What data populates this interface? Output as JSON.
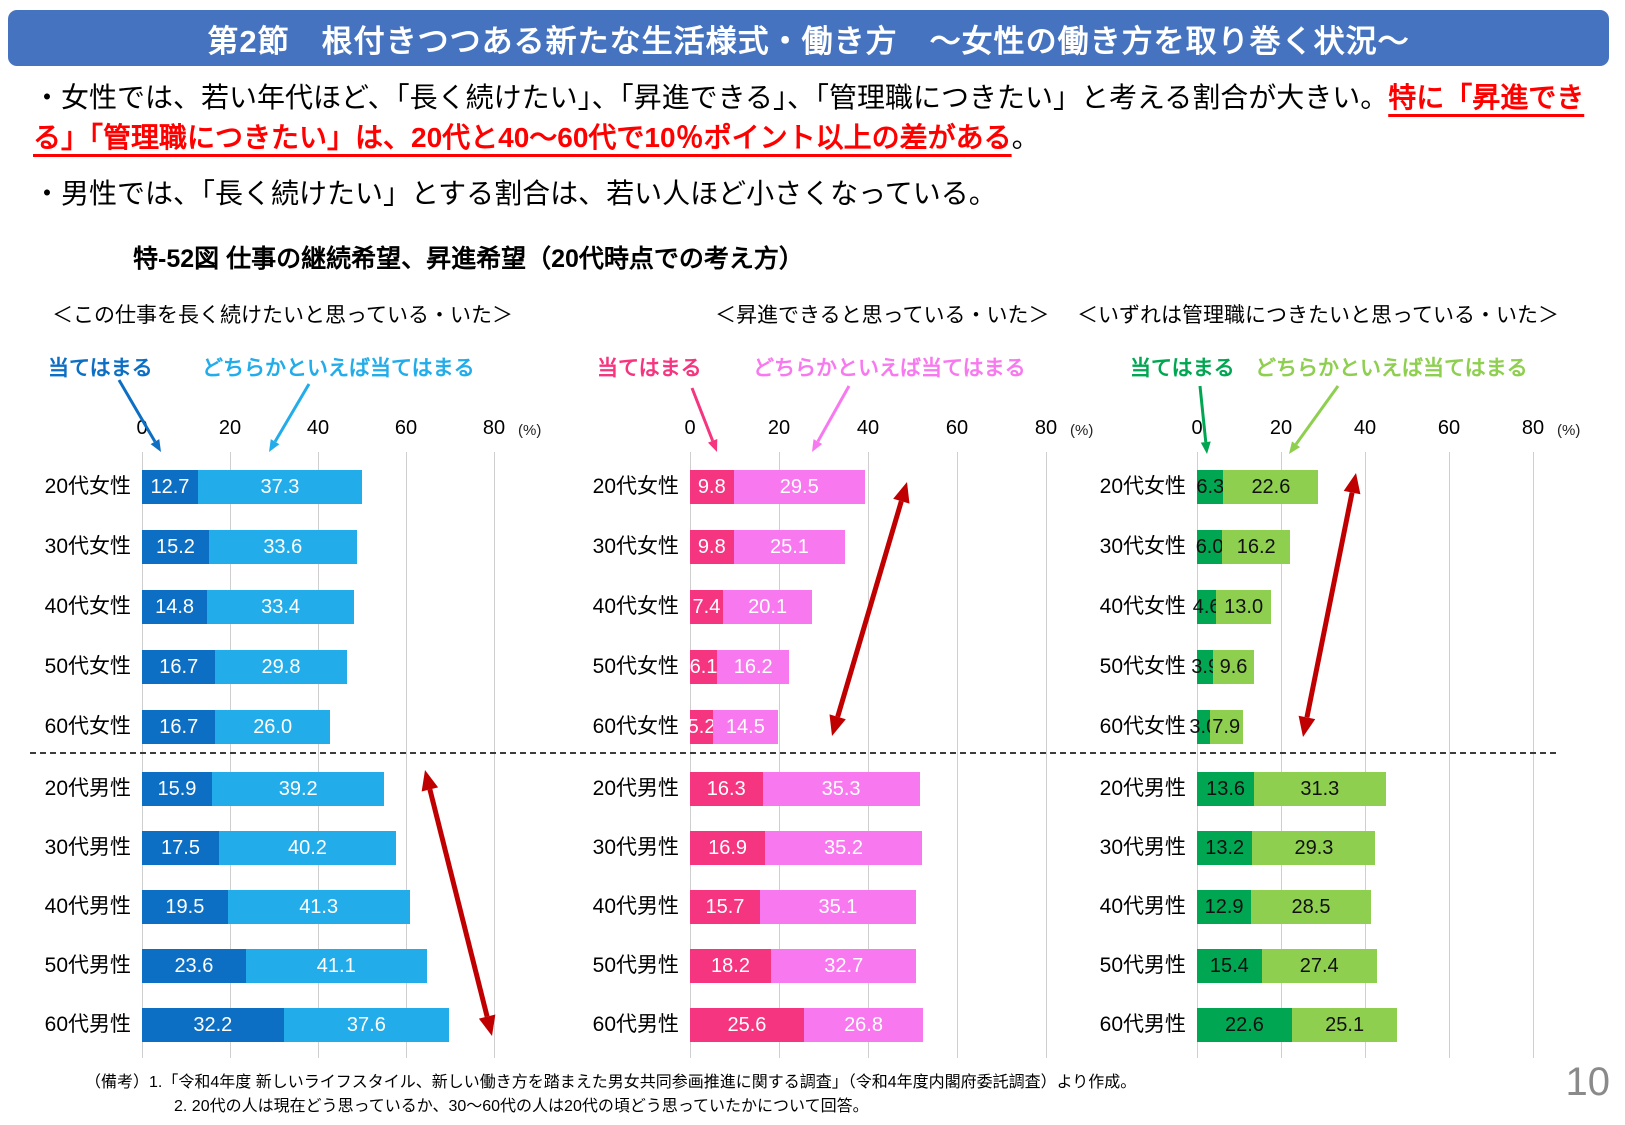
{
  "banner": {
    "title": "第2節　根付きつつある新たな生活様式・働き方　～女性の働き方を取り巻く状況～",
    "bg_color": "#4573c0"
  },
  "bullets": {
    "b1_black": "・女性では、若い年代ほど、「長く続けたい」、「昇進できる」、「管理職につきたい」と考える割合が大きい。",
    "b1_red": "特に「昇進できる」「管理職につきたい」は、20代と40～60代で10％ポイント以上の差がある",
    "b1_tail": "。",
    "b2": "・男性では、「長く続けたい」とする割合は、若い人ほど小さくなっている。",
    "red_color": "#ff0000"
  },
  "figure": {
    "title": "特-52図 仕事の継続希望、昇進希望（20代時点での考え方）"
  },
  "chart_data": [
    {
      "type": "bar",
      "orientation": "horizontal",
      "stacked": true,
      "title": "＜この仕事を長く続けたいと思っている・いた＞",
      "legend": [
        "当てはまる",
        "どちらかといえば当てはまる"
      ],
      "colors": [
        "#0d6fc4",
        "#22ace9"
      ],
      "value_text_color": "#ffffff",
      "axis_unit": "(%)",
      "xlim": [
        0,
        80
      ],
      "xticks": [
        0,
        20,
        40,
        60,
        80
      ],
      "divider_after_category": "60代女性",
      "categories": [
        "20代女性",
        "30代女性",
        "40代女性",
        "50代女性",
        "60代女性",
        "20代男性",
        "30代男性",
        "40代男性",
        "50代男性",
        "60代男性"
      ],
      "series": [
        {
          "name": "当てはまる",
          "values": [
            12.7,
            15.2,
            14.8,
            16.7,
            16.7,
            15.9,
            17.5,
            19.5,
            23.6,
            32.2
          ]
        },
        {
          "name": "どちらかといえば当てはまる",
          "values": [
            37.3,
            33.6,
            33.4,
            29.8,
            26.0,
            39.2,
            40.2,
            41.3,
            41.1,
            37.6
          ]
        }
      ]
    },
    {
      "type": "bar",
      "orientation": "horizontal",
      "stacked": true,
      "title": "＜昇進できると思っている・いた＞",
      "legend": [
        "当てはまる",
        "どちらかといえば当てはまる"
      ],
      "colors": [
        "#f5357f",
        "#f879ef"
      ],
      "value_text_color": "#ffffff",
      "axis_unit": "(%)",
      "xlim": [
        0,
        80
      ],
      "xticks": [
        0,
        20,
        40,
        60,
        80
      ],
      "divider_after_category": "60代女性",
      "categories": [
        "20代女性",
        "30代女性",
        "40代女性",
        "50代女性",
        "60代女性",
        "20代男性",
        "30代男性",
        "40代男性",
        "50代男性",
        "60代男性"
      ],
      "series": [
        {
          "name": "当てはまる",
          "values": [
            9.8,
            9.8,
            7.4,
            6.1,
            5.2,
            16.3,
            16.9,
            15.7,
            18.2,
            25.6
          ]
        },
        {
          "name": "どちらかといえば当てはまる",
          "values": [
            29.5,
            25.1,
            20.1,
            16.2,
            14.5,
            35.3,
            35.2,
            35.1,
            32.7,
            26.8
          ]
        }
      ]
    },
    {
      "type": "bar",
      "orientation": "horizontal",
      "stacked": true,
      "title": "＜いずれは管理職につきたいと思っている・いた＞",
      "legend": [
        "当てはまる",
        "どちらかといえば当てはまる"
      ],
      "colors": [
        "#00a651",
        "#8ecf4f"
      ],
      "value_text_color": "#111111",
      "axis_unit": "(%)",
      "xlim": [
        0,
        80
      ],
      "xticks": [
        0,
        20,
        40,
        60,
        80
      ],
      "divider_after_category": "60代女性",
      "categories": [
        "20代女性",
        "30代女性",
        "40代女性",
        "50代女性",
        "60代女性",
        "20代男性",
        "30代男性",
        "40代男性",
        "50代男性",
        "60代男性"
      ],
      "series": [
        {
          "name": "当てはまる",
          "values": [
            6.3,
            6.0,
            4.6,
            3.9,
            3.0,
            13.6,
            13.2,
            12.9,
            15.4,
            22.6
          ]
        },
        {
          "name": "どちらかといえば当てはまる",
          "values": [
            22.6,
            16.2,
            13.0,
            9.6,
            7.9,
            31.3,
            29.3,
            28.5,
            27.4,
            25.1
          ]
        }
      ]
    }
  ],
  "emphasis_arrow_color": "#c00000",
  "footnotes": {
    "line1": "（備考）1.「令和4年度 新しいライフスタイル、新しい働き方を踏まえた男女共同参画推進に関する調査」（令和4年度内閣府委託調査）より作成。",
    "line2": "2. 20代の人は現在どう思っているか、30～60代の人は20代の頃どう思っていたかについて回答。"
  },
  "page_number": "10"
}
